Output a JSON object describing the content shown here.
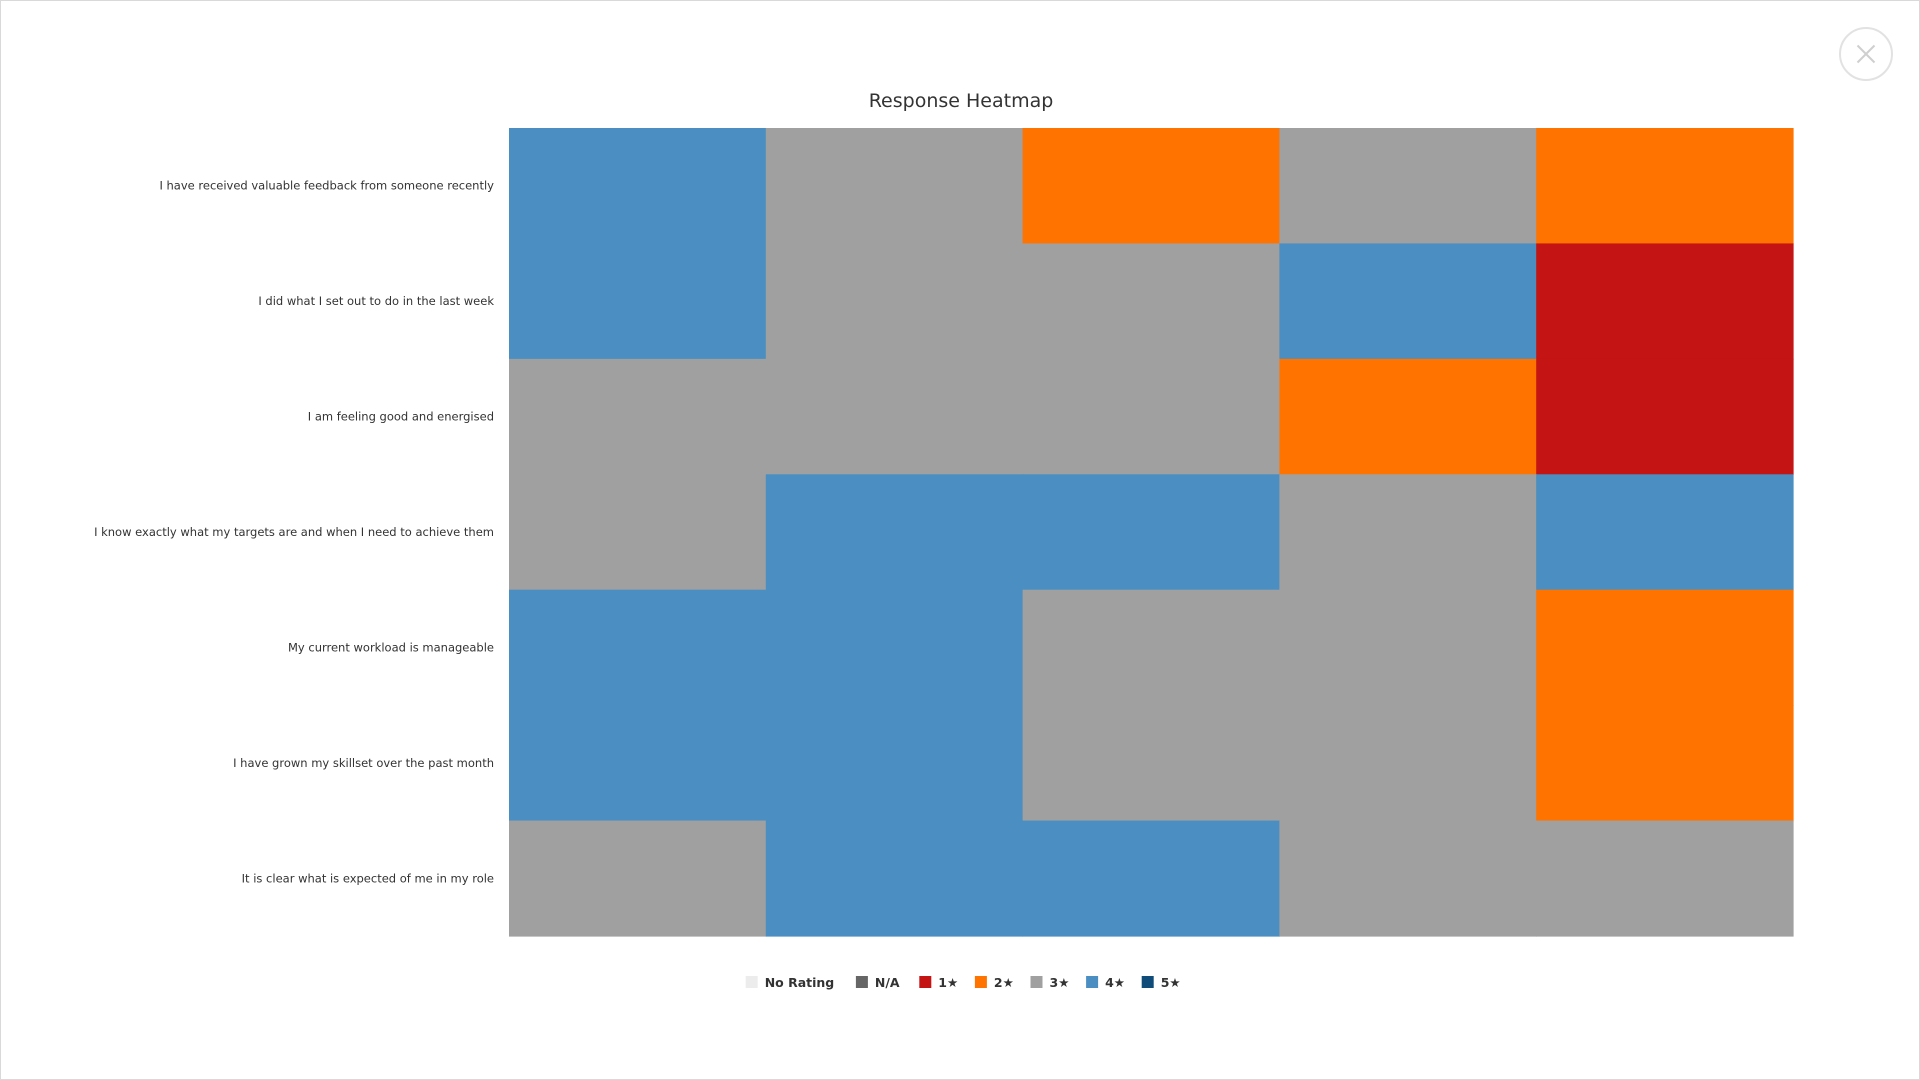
{
  "chart_data": {
    "type": "heatmap",
    "title": "Response Heatmap",
    "rows": [
      "I have received valuable feedback from someone recently",
      "I did what I set out to do in the last week",
      "I am feeling good and energised",
      "I know exactly what my targets are and when I need to achieve them",
      "My current workload is manageable",
      "I have grown my skillset over the past month",
      "It is clear what is expected of me in my role"
    ],
    "columns": 5,
    "values": [
      [
        "4★",
        "3★",
        "2★",
        "3★",
        "2★"
      ],
      [
        "4★",
        "3★",
        "3★",
        "4★",
        "1★"
      ],
      [
        "3★",
        "3★",
        "3★",
        "2★",
        "1★"
      ],
      [
        "3★",
        "4★",
        "4★",
        "3★",
        "4★"
      ],
      [
        "4★",
        "4★",
        "3★",
        "3★",
        "2★"
      ],
      [
        "4★",
        "4★",
        "3★",
        "3★",
        "2★"
      ],
      [
        "3★",
        "4★",
        "4★",
        "3★",
        "3★"
      ]
    ],
    "legend": [
      {
        "label": "No Rating",
        "color": "#ececec"
      },
      {
        "label": "N/A",
        "color": "#666666"
      },
      {
        "label": "1★",
        "color": "#c41413"
      },
      {
        "label": "2★",
        "color": "#ff7400"
      },
      {
        "label": "3★",
        "color": "#a0a0a0"
      },
      {
        "label": "4★",
        "color": "#4a8ec2"
      },
      {
        "label": "5★",
        "color": "#0f4c7a"
      }
    ],
    "legend_position": "bottom-center"
  },
  "ui": {
    "close_icon": "close-icon"
  }
}
